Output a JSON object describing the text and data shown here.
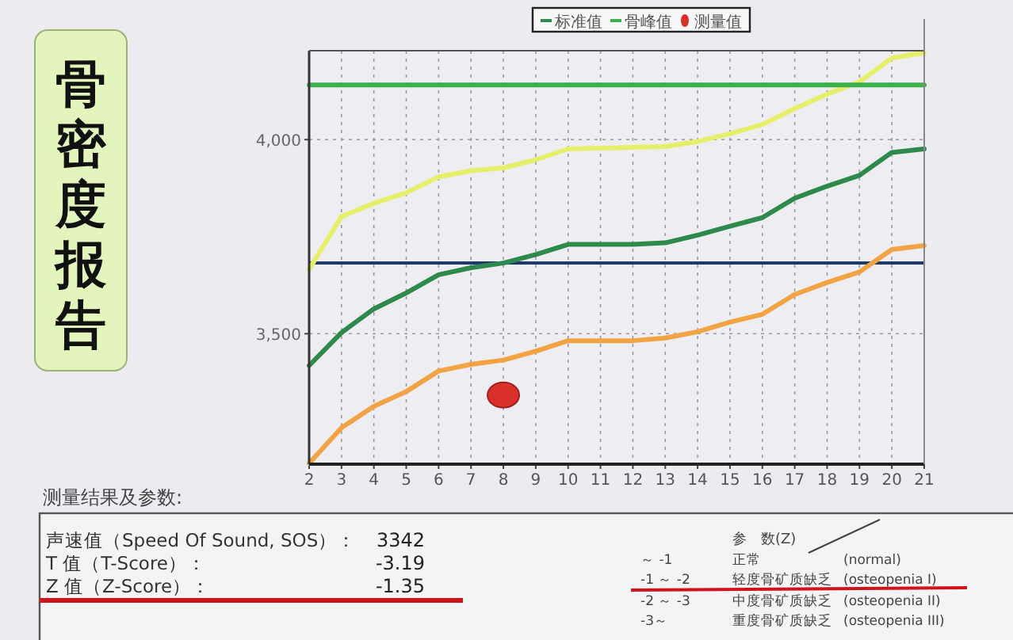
{
  "chart_data": {
    "type": "line",
    "title": "骨密度报告",
    "x": [
      2,
      3,
      4,
      5,
      6,
      7,
      8,
      9,
      10,
      11,
      12,
      13,
      14,
      15,
      16,
      17,
      18,
      19,
      20,
      21
    ],
    "series": [
      {
        "color": "#e6ef6a",
        "values": [
          3666,
          3802,
          3836,
          3863,
          3904,
          3920,
          3927,
          3948,
          3976,
          3978,
          3980,
          3982,
          3995,
          4015,
          4039,
          4080,
          4117,
          4149,
          4210,
          4224
        ]
      },
      {
        "name": "标准值",
        "color": "#2e8a4c",
        "values": [
          3418,
          3503,
          3564,
          3605,
          3652,
          3670,
          3682,
          3704,
          3730,
          3730,
          3730,
          3734,
          3754,
          3777,
          3799,
          3849,
          3880,
          3908,
          3967,
          3976
        ]
      },
      {
        "color": "#f2a444",
        "values": [
          3166,
          3258,
          3313,
          3351,
          3404,
          3421,
          3432,
          3455,
          3482,
          3482,
          3482,
          3489,
          3505,
          3530,
          3550,
          3601,
          3632,
          3659,
          3717,
          3727
        ]
      },
      {
        "name": "骨峰值",
        "color": "#3cb04a",
        "values": [
          4141,
          4141,
          4141,
          4141,
          4141,
          4141,
          4141,
          4141,
          4141,
          4141,
          4141,
          4141,
          4141,
          4141,
          4141,
          4141,
          4141,
          4141,
          4141,
          4141
        ]
      },
      {
        "name": "测量值",
        "type": "scatter",
        "marker": "circle",
        "color": "#d9302a",
        "x": [
          8
        ],
        "values": [
          3342
        ]
      }
    ],
    "ref_lines": [
      {
        "axis": "y",
        "value": 3682,
        "color": "#1f3a6a"
      }
    ],
    "xlim": [
      2,
      21
    ],
    "ylim": [
      3164,
      4229
    ],
    "xticks": [
      2,
      3,
      4,
      5,
      6,
      7,
      8,
      9,
      10,
      11,
      12,
      13,
      14,
      15,
      16,
      17,
      18,
      19,
      20,
      21
    ],
    "yticks": [
      {
        "value": 3500,
        "label": "3,500"
      },
      {
        "value": 4000,
        "label": "4,000"
      }
    ],
    "grid": true,
    "legend": "top",
    "line_style": "solid",
    "annotations": [
      "测量结果及参数:",
      "声速值（Speed Of Sound, SOS）：",
      "3342",
      "T 值（T-Score）：",
      "-3.19",
      "Z 值（Z-Score）：",
      "-1.35",
      "参　数(Z)",
      "～ -1",
      "正常",
      "(normal)",
      "-1 ～ -2",
      "轻度骨矿质缺乏",
      "(osteopenia I)",
      "-2 ～ -3",
      "中度骨矿质缺乏",
      "(osteopenia II)",
      "-3～",
      "重度骨矿质缺乏",
      "(osteopenia III)"
    ]
  }
}
